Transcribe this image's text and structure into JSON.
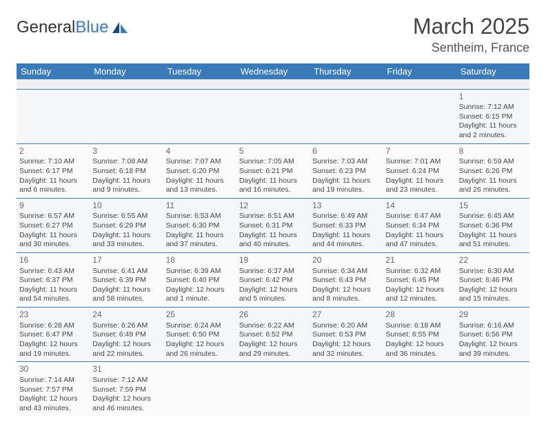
{
  "logo": {
    "text1": "General",
    "text2": "Blue"
  },
  "title": "March 2025",
  "location": "Sentheim, France",
  "colors": {
    "header_bg": "#3a7ab8",
    "header_fg": "#ffffff",
    "cell_border": "#3a7ab8",
    "empty_bg": "#eef0f2",
    "text": "#444444"
  },
  "day_headers": [
    "Sunday",
    "Monday",
    "Tuesday",
    "Wednesday",
    "Thursday",
    "Friday",
    "Saturday"
  ],
  "weeks": [
    [
      null,
      null,
      null,
      null,
      null,
      null,
      {
        "n": "1",
        "sr": "7:12 AM",
        "ss": "6:15 PM",
        "dl": "11 hours and 2 minutes."
      }
    ],
    [
      {
        "n": "2",
        "sr": "7:10 AM",
        "ss": "6:17 PM",
        "dl": "11 hours and 6 minutes."
      },
      {
        "n": "3",
        "sr": "7:08 AM",
        "ss": "6:18 PM",
        "dl": "11 hours and 9 minutes."
      },
      {
        "n": "4",
        "sr": "7:07 AM",
        "ss": "6:20 PM",
        "dl": "11 hours and 13 minutes."
      },
      {
        "n": "5",
        "sr": "7:05 AM",
        "ss": "6:21 PM",
        "dl": "11 hours and 16 minutes."
      },
      {
        "n": "6",
        "sr": "7:03 AM",
        "ss": "6:23 PM",
        "dl": "11 hours and 19 minutes."
      },
      {
        "n": "7",
        "sr": "7:01 AM",
        "ss": "6:24 PM",
        "dl": "11 hours and 23 minutes."
      },
      {
        "n": "8",
        "sr": "6:59 AM",
        "ss": "6:26 PM",
        "dl": "11 hours and 26 minutes."
      }
    ],
    [
      {
        "n": "9",
        "sr": "6:57 AM",
        "ss": "6:27 PM",
        "dl": "11 hours and 30 minutes."
      },
      {
        "n": "10",
        "sr": "6:55 AM",
        "ss": "6:29 PM",
        "dl": "11 hours and 33 minutes."
      },
      {
        "n": "11",
        "sr": "6:53 AM",
        "ss": "6:30 PM",
        "dl": "11 hours and 37 minutes."
      },
      {
        "n": "12",
        "sr": "6:51 AM",
        "ss": "6:31 PM",
        "dl": "11 hours and 40 minutes."
      },
      {
        "n": "13",
        "sr": "6:49 AM",
        "ss": "6:33 PM",
        "dl": "11 hours and 44 minutes."
      },
      {
        "n": "14",
        "sr": "6:47 AM",
        "ss": "6:34 PM",
        "dl": "11 hours and 47 minutes."
      },
      {
        "n": "15",
        "sr": "6:45 AM",
        "ss": "6:36 PM",
        "dl": "11 hours and 51 minutes."
      }
    ],
    [
      {
        "n": "16",
        "sr": "6:43 AM",
        "ss": "6:37 PM",
        "dl": "11 hours and 54 minutes."
      },
      {
        "n": "17",
        "sr": "6:41 AM",
        "ss": "6:39 PM",
        "dl": "11 hours and 58 minutes."
      },
      {
        "n": "18",
        "sr": "6:39 AM",
        "ss": "6:40 PM",
        "dl": "12 hours and 1 minute."
      },
      {
        "n": "19",
        "sr": "6:37 AM",
        "ss": "6:42 PM",
        "dl": "12 hours and 5 minutes."
      },
      {
        "n": "20",
        "sr": "6:34 AM",
        "ss": "6:43 PM",
        "dl": "12 hours and 8 minutes."
      },
      {
        "n": "21",
        "sr": "6:32 AM",
        "ss": "6:45 PM",
        "dl": "12 hours and 12 minutes."
      },
      {
        "n": "22",
        "sr": "6:30 AM",
        "ss": "6:46 PM",
        "dl": "12 hours and 15 minutes."
      }
    ],
    [
      {
        "n": "23",
        "sr": "6:28 AM",
        "ss": "6:47 PM",
        "dl": "12 hours and 19 minutes."
      },
      {
        "n": "24",
        "sr": "6:26 AM",
        "ss": "6:49 PM",
        "dl": "12 hours and 22 minutes."
      },
      {
        "n": "25",
        "sr": "6:24 AM",
        "ss": "6:50 PM",
        "dl": "12 hours and 26 minutes."
      },
      {
        "n": "26",
        "sr": "6:22 AM",
        "ss": "6:52 PM",
        "dl": "12 hours and 29 minutes."
      },
      {
        "n": "27",
        "sr": "6:20 AM",
        "ss": "6:53 PM",
        "dl": "12 hours and 32 minutes."
      },
      {
        "n": "28",
        "sr": "6:18 AM",
        "ss": "6:55 PM",
        "dl": "12 hours and 36 minutes."
      },
      {
        "n": "29",
        "sr": "6:16 AM",
        "ss": "6:56 PM",
        "dl": "12 hours and 39 minutes."
      }
    ],
    [
      {
        "n": "30",
        "sr": "7:14 AM",
        "ss": "7:57 PM",
        "dl": "12 hours and 43 minutes."
      },
      {
        "n": "31",
        "sr": "7:12 AM",
        "ss": "7:59 PM",
        "dl": "12 hours and 46 minutes."
      },
      null,
      null,
      null,
      null,
      null
    ]
  ],
  "labels": {
    "sunrise": "Sunrise: ",
    "sunset": "Sunset: ",
    "daylight": "Daylight: "
  }
}
